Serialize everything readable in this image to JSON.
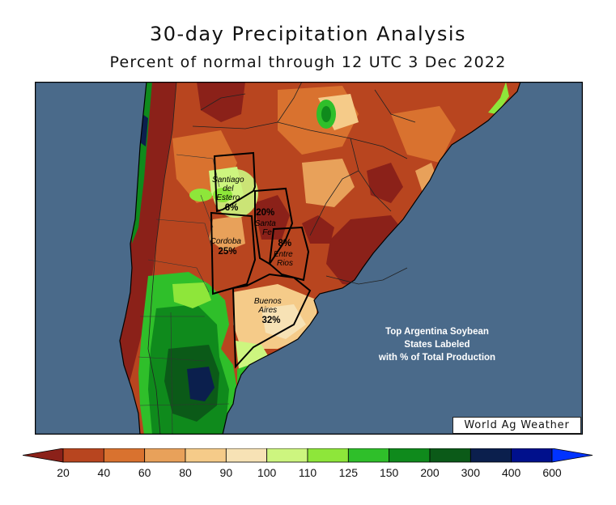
{
  "title": "30-day Precipitation Analysis",
  "subtitle": "Percent of normal through 12 UTC 3 Dec 2022",
  "watermark": "World Ag Weather",
  "note_lines": [
    "Top Argentina Soybean",
    "States Labeled",
    "with % of Total Production"
  ],
  "states": [
    {
      "name_lines": [
        "Santiago",
        "del",
        "Estero"
      ],
      "pct": "6%"
    },
    {
      "name_lines": [
        "Santa",
        "Fe"
      ],
      "pct": "20%"
    },
    {
      "name_lines": [
        "Cordoba"
      ],
      "pct": "25%"
    },
    {
      "name_lines": [
        "Entre",
        "Rios"
      ],
      "pct": "8%"
    },
    {
      "name_lines": [
        "Buenos",
        "Aires"
      ],
      "pct": "32%"
    }
  ],
  "legend": {
    "labels": [
      "20",
      "40",
      "60",
      "80",
      "90",
      "100",
      "110",
      "125",
      "150",
      "200",
      "300",
      "400",
      "600"
    ],
    "colors": [
      "#8b2119",
      "#b8451f",
      "#d9722f",
      "#e8a15a",
      "#f5cb89",
      "#f7e2b5",
      "#cdf57f",
      "#8ee63a",
      "#2fbf2a",
      "#0f8a1c",
      "#0b5a18",
      "#0b1f4d",
      "#00108c",
      "#0033ff"
    ]
  },
  "colors": {
    "ocean": "#4a6a8a",
    "border": "#000000"
  }
}
